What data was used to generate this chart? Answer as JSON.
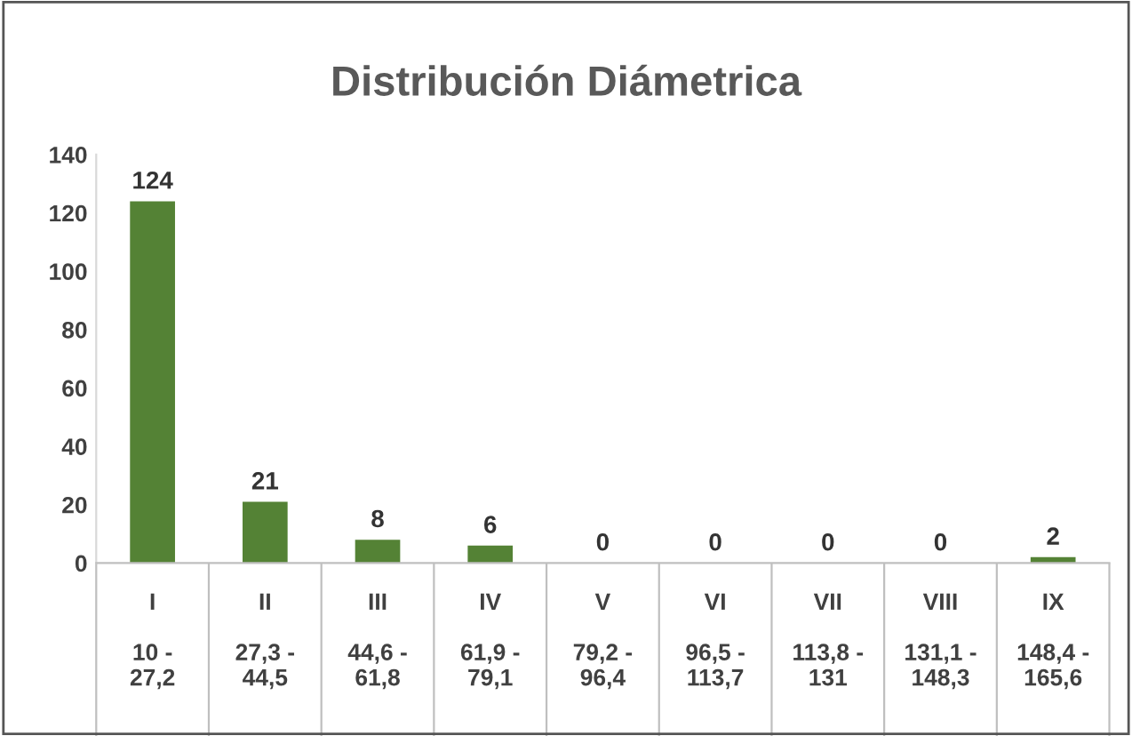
{
  "chart_data": {
    "type": "bar",
    "title": "Distribución Diámetrica",
    "categories": [
      "I\n10 - 27,2",
      "II\n27,3 - 44,5",
      "III\n44,6 - 61,8",
      "IV\n61,9 - 79,1",
      "V\n79,2 - 96,4",
      "VI\n96,5 - 113,7",
      "VII\n113,8 - 131",
      "VIII\n131,1 - 148,3",
      "IX\n148,4 - 165,6"
    ],
    "values": [
      124,
      21,
      8,
      6,
      0,
      0,
      0,
      0,
      2
    ],
    "color": "#548235",
    "ylim": [
      0,
      140
    ],
    "yticks": [
      0,
      20,
      40,
      60,
      80,
      100,
      120,
      140
    ],
    "data_labels": true,
    "grid": false,
    "legend": false
  }
}
